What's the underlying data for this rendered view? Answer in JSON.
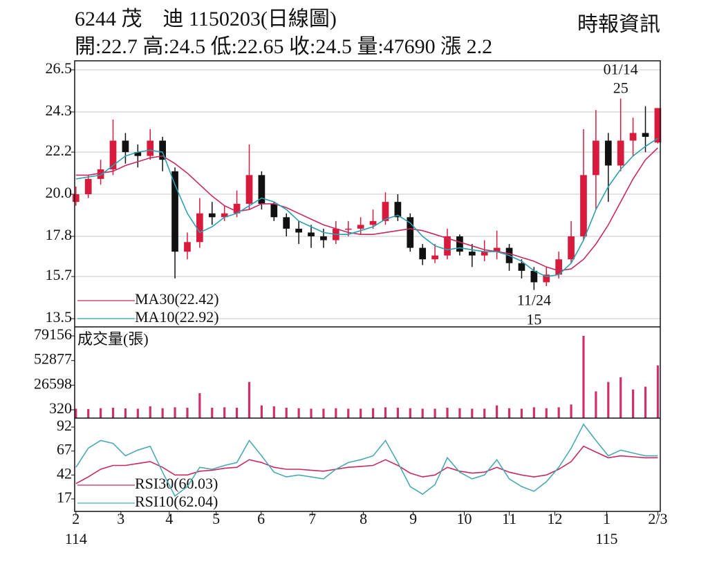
{
  "chart_data": [
    {
      "type": "candlestick",
      "title": "6244 茂　迪 1150203(日線圖)",
      "subtitle": "開:22.7 高:24.5 低:22.65 收:24.5 量:47690 漲 2.2",
      "source": "時報資訊",
      "open": [
        19.6,
        20.0,
        20.8,
        21.3,
        22.8,
        22.2,
        22.0,
        22.8,
        21.2,
        17.0,
        17.5,
        19.0,
        18.8,
        19.0,
        19.5,
        21.0,
        19.5,
        18.8,
        18.2,
        18.0,
        17.8,
        17.6,
        18.2,
        18.2,
        18.4,
        18.6,
        19.6,
        18.8,
        17.2,
        16.6,
        16.8,
        17.8,
        17.0,
        16.8,
        17.0,
        17.2,
        16.4,
        16.0,
        15.4,
        15.8,
        16.6,
        17.8,
        21.0,
        22.8,
        21.5,
        22.8,
        23.2,
        22.7
      ],
      "high": [
        20.4,
        21.0,
        21.8,
        23.9,
        23.2,
        22.6,
        23.4,
        23.0,
        21.4,
        18.0,
        19.8,
        19.6,
        19.4,
        20.2,
        22.6,
        21.2,
        19.6,
        19.0,
        18.6,
        18.4,
        18.2,
        18.6,
        18.6,
        18.8,
        19.2,
        20.1,
        20.0,
        19.0,
        17.4,
        17.4,
        18.2,
        17.9,
        17.4,
        17.6,
        18.1,
        17.4,
        16.6,
        16.2,
        16.2,
        17.0,
        18.6,
        23.4,
        24.4,
        23.2,
        25,
        24.0,
        24.6,
        24.5
      ],
      "low": [
        19.4,
        19.8,
        20.5,
        21.0,
        21.6,
        21.4,
        21.8,
        21.2,
        15.6,
        16.6,
        17.2,
        18.4,
        18.6,
        18.8,
        19.2,
        19.2,
        18.6,
        17.8,
        17.4,
        17.2,
        17.2,
        17.4,
        17.8,
        17.9,
        18.2,
        18.4,
        18.6,
        17.0,
        16.3,
        16.4,
        16.6,
        16.8,
        16.2,
        16.5,
        16.6,
        16.0,
        15.6,
        15,
        15.2,
        15.6,
        16.4,
        17.6,
        19.2,
        19.6,
        21.2,
        22.0,
        22.2,
        22.65
      ],
      "close": [
        20.0,
        20.8,
        21.3,
        22.8,
        22.2,
        22.0,
        22.8,
        21.8,
        17.0,
        17.5,
        19.0,
        18.8,
        19.0,
        19.5,
        21.0,
        19.5,
        18.8,
        18.2,
        18.0,
        17.8,
        17.6,
        18.2,
        18.2,
        18.4,
        18.6,
        19.6,
        18.8,
        17.2,
        16.6,
        16.8,
        17.8,
        17.0,
        16.8,
        17.0,
        17.2,
        16.4,
        16.0,
        15.4,
        15.8,
        16.6,
        17.8,
        21.0,
        22.8,
        21.5,
        22.8,
        23.2,
        23.0,
        24.5
      ],
      "up_color": "#d81b3c",
      "down_color": "#111111",
      "series": [
        {
          "name": "MA30(22.42)",
          "color": "#c8285e",
          "values": [
            21.0,
            21.0,
            21.1,
            21.2,
            21.5,
            21.7,
            21.9,
            22.0,
            21.6,
            21.1,
            20.5,
            19.9,
            19.4,
            19.1,
            19.2,
            19.5,
            19.5,
            19.3,
            19.0,
            18.7,
            18.4,
            18.2,
            18.0,
            17.9,
            17.9,
            18.0,
            18.1,
            18.2,
            18.1,
            17.9,
            17.7,
            17.5,
            17.3,
            17.1,
            17.0,
            16.9,
            16.7,
            16.5,
            16.2,
            16.0,
            16.1,
            16.6,
            17.4,
            18.4,
            19.6,
            20.8,
            21.8,
            22.42
          ]
        },
        {
          "name": "MA10(22.92)",
          "color": "#2a9fae",
          "values": [
            20.8,
            20.9,
            21.0,
            21.5,
            22.0,
            22.2,
            22.3,
            22.2,
            20.5,
            19.0,
            18.0,
            18.3,
            18.8,
            19.0,
            19.4,
            19.8,
            19.6,
            19.2,
            18.6,
            18.3,
            18.0,
            17.9,
            17.9,
            18.1,
            18.3,
            18.7,
            18.9,
            18.5,
            17.8,
            17.3,
            17.1,
            17.2,
            17.1,
            17.0,
            17.0,
            16.8,
            16.5,
            16.0,
            15.7,
            15.8,
            16.4,
            17.6,
            19.2,
            20.4,
            21.3,
            22.0,
            22.5,
            22.92
          ]
        }
      ],
      "annotations": [
        {
          "date": "01/14",
          "value": 25,
          "x": 44
        },
        {
          "date": "11/24",
          "value": 15,
          "x": 37
        }
      ],
      "ylim": [
        13.07,
        26.97
      ],
      "yticks": [
        13.5,
        15.7,
        17.8,
        {
          "value": 20,
          "label": "20.0"
        },
        22.2,
        24.3,
        26.5
      ],
      "grid": true
    },
    {
      "type": "bar",
      "title": "成交量(張)",
      "color": "#d0306a",
      "values": [
        1500,
        1200,
        2000,
        2500,
        1800,
        1500,
        4000,
        2000,
        3000,
        2500,
        18000,
        2500,
        3000,
        2500,
        30000,
        5000,
        4000,
        2500,
        2000,
        1500,
        1500,
        2000,
        1500,
        1500,
        2000,
        3000,
        2500,
        2000,
        1500,
        1500,
        2500,
        2000,
        1500,
        1500,
        5000,
        2000,
        1500,
        3000,
        2000,
        3000,
        6000,
        79156,
        20000,
        30000,
        35000,
        22000,
        25000,
        47690
      ],
      "ylim": [
        -8521,
        88737
      ],
      "yticks": [
        320,
        26598,
        52877,
        79156
      ]
    },
    {
      "type": "line",
      "series": [
        {
          "name": "RSI30(60.03)",
          "color": "#c8285e",
          "values": [
            33,
            40,
            48,
            52,
            52,
            54,
            56,
            50,
            42,
            42,
            46,
            47,
            49,
            50,
            58,
            55,
            50,
            48,
            48,
            47,
            46,
            48,
            50,
            51,
            52,
            58,
            52,
            44,
            40,
            42,
            50,
            46,
            44,
            45,
            50,
            45,
            42,
            40,
            42,
            48,
            56,
            72,
            66,
            60,
            62,
            61,
            60,
            60.03
          ]
        },
        {
          "name": "RSI10(62.04)",
          "color": "#4aa8b4",
          "values": [
            50,
            70,
            78,
            75,
            62,
            68,
            72,
            45,
            20,
            30,
            50,
            48,
            52,
            55,
            78,
            62,
            45,
            40,
            42,
            40,
            38,
            48,
            55,
            58,
            62,
            78,
            55,
            30,
            22,
            32,
            60,
            45,
            38,
            42,
            58,
            38,
            30,
            25,
            35,
            50,
            70,
            95,
            78,
            62,
            68,
            65,
            62,
            62.04
          ]
        }
      ],
      "ylim": [
        4,
        101.4
      ],
      "yticks": [
        17,
        42,
        67,
        92
      ],
      "xlim": [
        -0.1,
        47.2
      ],
      "xticks": [
        {
          "value": 0,
          "label": "2"
        },
        {
          "value": 3.63,
          "label": "3"
        },
        {
          "value": 7.54,
          "label": "4"
        },
        {
          "value": 11.33,
          "label": "5"
        },
        {
          "value": 14.96,
          "label": "6"
        },
        {
          "value": 19.09,
          "label": "7"
        },
        {
          "value": 23.22,
          "label": "8"
        },
        {
          "value": 27.24,
          "label": "9"
        },
        {
          "value": 31.37,
          "label": "10"
        },
        {
          "value": 35.0,
          "label": "11"
        },
        {
          "value": 38.68,
          "label": "12"
        },
        {
          "value": 42.87,
          "label": "1"
        },
        {
          "value": 47,
          "label": "2/3"
        }
      ],
      "year_ticks": [
        {
          "value": 0,
          "label": "114"
        },
        {
          "value": 42.87,
          "label": "115"
        }
      ]
    }
  ]
}
